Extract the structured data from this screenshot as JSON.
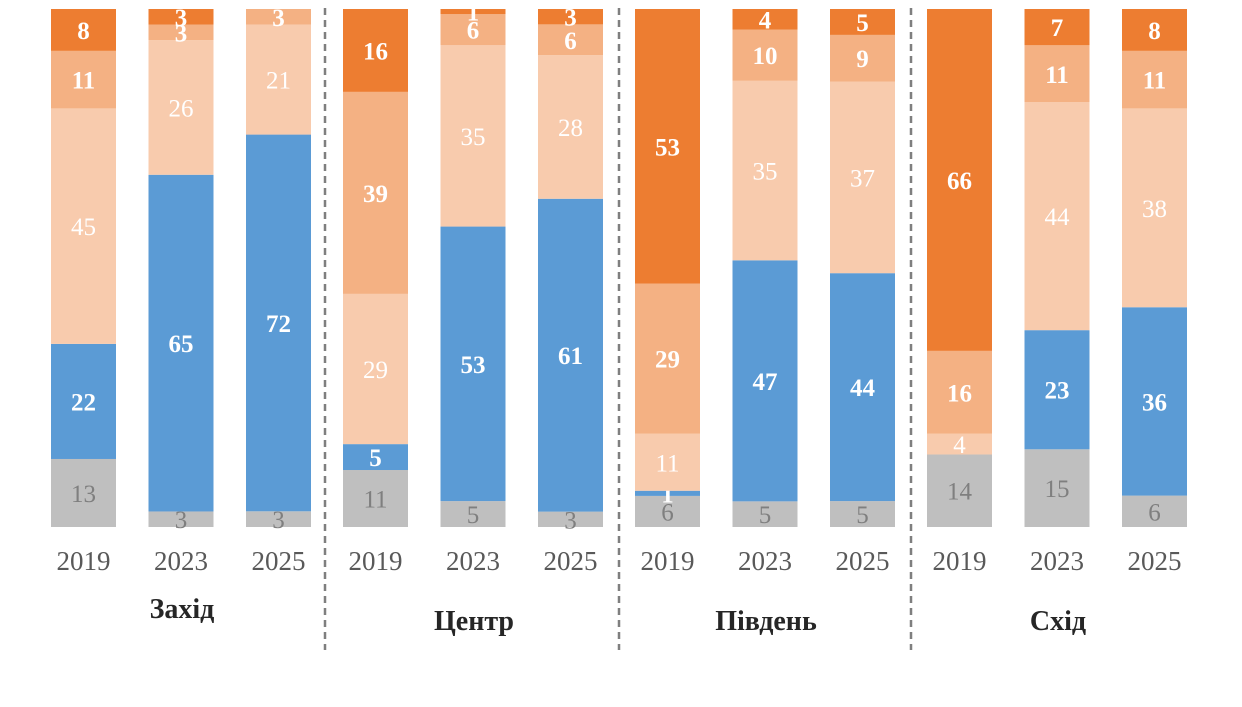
{
  "chart_data": {
    "type": "bar",
    "stacked": true,
    "ylim": [
      0,
      100
    ],
    "grid": false,
    "legend": "none",
    "stack_order": [
      "gray",
      "blue",
      "light_peach",
      "light_orange",
      "orange"
    ],
    "colors": {
      "gray": "#bfbfbf",
      "blue": "#5b9bd5",
      "light_peach": "#f8cbad",
      "light_orange": "#f4b183",
      "orange": "#ed7d31"
    },
    "label_colors": {
      "gray": "#7f7f7f",
      "blue": "#ffffff",
      "light_peach": "#ffffff",
      "light_orange": "#ffffff",
      "orange": "#ffffff"
    },
    "groups": [
      {
        "name": "Захід",
        "bars": [
          {
            "year": "2019",
            "values": [
              13,
              22,
              45,
              11,
              8
            ]
          },
          {
            "year": "2023",
            "values": [
              3,
              65,
              26,
              3,
              3
            ]
          },
          {
            "year": "2025",
            "values": [
              3,
              72,
              21,
              3,
              0
            ]
          }
        ]
      },
      {
        "name": "Центр",
        "bars": [
          {
            "year": "2019",
            "values": [
              11,
              5,
              29,
              39,
              16
            ]
          },
          {
            "year": "2023",
            "values": [
              5,
              53,
              35,
              6,
              1
            ]
          },
          {
            "year": "2025",
            "values": [
              3,
              61,
              28,
              6,
              3
            ]
          }
        ]
      },
      {
        "name": "Південь",
        "bars": [
          {
            "year": "2019",
            "values": [
              6,
              1,
              11,
              29,
              53
            ]
          },
          {
            "year": "2023",
            "values": [
              5,
              47,
              35,
              10,
              4
            ]
          },
          {
            "year": "2025",
            "values": [
              5,
              44,
              37,
              9,
              5
            ]
          }
        ]
      },
      {
        "name": "Схід",
        "bars": [
          {
            "year": "2019",
            "values": [
              14,
              0,
              4,
              16,
              66
            ]
          },
          {
            "year": "2023",
            "values": [
              15,
              23,
              44,
              11,
              7
            ]
          },
          {
            "year": "2025",
            "values": [
              6,
              36,
              38,
              11,
              8
            ]
          }
        ]
      }
    ]
  }
}
